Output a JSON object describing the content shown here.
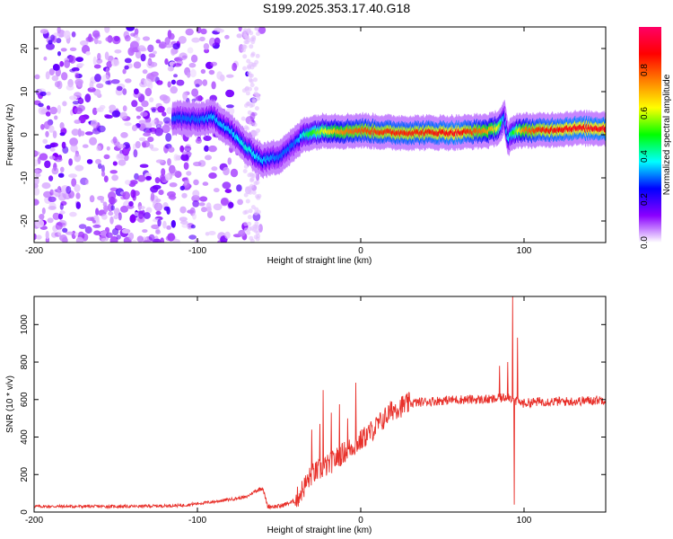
{
  "title": "S199.2025.353.17.40.G18",
  "chart_data": [
    {
      "type": "heatmap",
      "name": "spectrogram",
      "xlabel": "Height of straight line (km)",
      "ylabel": "Frequency (Hz)",
      "xlim": [
        -200,
        150
      ],
      "ylim": [
        -25,
        25
      ],
      "xticks": [
        -200,
        -100,
        0,
        100
      ],
      "yticks": [
        -20,
        -10,
        0,
        10,
        20
      ],
      "ridge": {
        "x": [
          -115,
          -100,
          -90,
          -80,
          -70,
          -60,
          -50,
          -40,
          -35,
          -30,
          -20,
          -10,
          0,
          20,
          40,
          60,
          80,
          85,
          88,
          90,
          95,
          100,
          110,
          130,
          150
        ],
        "freq": [
          4,
          3.5,
          4,
          1,
          -3,
          -6,
          -5,
          -2,
          0,
          0.5,
          1,
          0.8,
          1,
          0.5,
          0.5,
          0.5,
          1,
          2,
          4,
          -1,
          1,
          1,
          1,
          1.5,
          1.5
        ],
        "amplitude": [
          0.3,
          0.3,
          0.35,
          0.35,
          0.4,
          0.35,
          0.3,
          0.3,
          0.4,
          0.5,
          0.65,
          0.75,
          0.8,
          0.85,
          0.85,
          0.9,
          0.7,
          0.6,
          0.3,
          0.35,
          0.55,
          0.75,
          0.85,
          0.9,
          0.9
        ]
      }
    },
    {
      "type": "colorbar",
      "label": "Normalized spectral amplitude",
      "ticks": [
        "0.0",
        "0.2",
        "0.4",
        "0.6",
        "0.8"
      ],
      "tick_values": [
        0.0,
        0.2,
        0.4,
        0.6,
        0.8
      ],
      "range": [
        0,
        1
      ],
      "colormap": [
        "#ffffff",
        "#8a00ff",
        "#0000ff",
        "#00ffff",
        "#00ff00",
        "#ffff00",
        "#ff8000",
        "#ff0000",
        "#ff0066"
      ]
    },
    {
      "type": "line",
      "name": "snr",
      "xlabel": "Height of straight line (km)",
      "ylabel": "SNR (10 * v/v)",
      "xlim": [
        -200,
        150
      ],
      "ylim": [
        0,
        1150
      ],
      "xticks": [
        -200,
        -100,
        0,
        100
      ],
      "yticks": [
        0,
        200,
        400,
        600,
        800,
        1000
      ],
      "color": "#e8302a",
      "envelope": {
        "x": [
          -200,
          -140,
          -110,
          -90,
          -70,
          -65,
          -60,
          -57,
          -50,
          -40,
          -35,
          -30,
          -20,
          -10,
          0,
          10,
          20,
          30,
          40,
          60,
          80,
          88,
          90,
          93,
          95,
          100,
          110,
          130,
          150
        ],
        "y": [
          30,
          30,
          35,
          55,
          80,
          110,
          130,
          30,
          30,
          60,
          130,
          200,
          250,
          320,
          380,
          460,
          550,
          580,
          590,
          600,
          600,
          610,
          620,
          600,
          590,
          580,
          590,
          590,
          600
        ]
      },
      "spikes": [
        {
          "x": -30,
          "y": 440
        },
        {
          "x": -25,
          "y": 470
        },
        {
          "x": -23,
          "y": 650
        },
        {
          "x": -18,
          "y": 530
        },
        {
          "x": -13,
          "y": 575
        },
        {
          "x": -8,
          "y": 500
        },
        {
          "x": -3,
          "y": 690
        },
        {
          "x": 2,
          "y": 440
        },
        {
          "x": 85,
          "y": 780
        },
        {
          "x": 90,
          "y": 800
        },
        {
          "x": 93,
          "y": 1150
        },
        {
          "x": 94,
          "y": 40
        },
        {
          "x": 96,
          "y": 930
        }
      ]
    }
  ]
}
